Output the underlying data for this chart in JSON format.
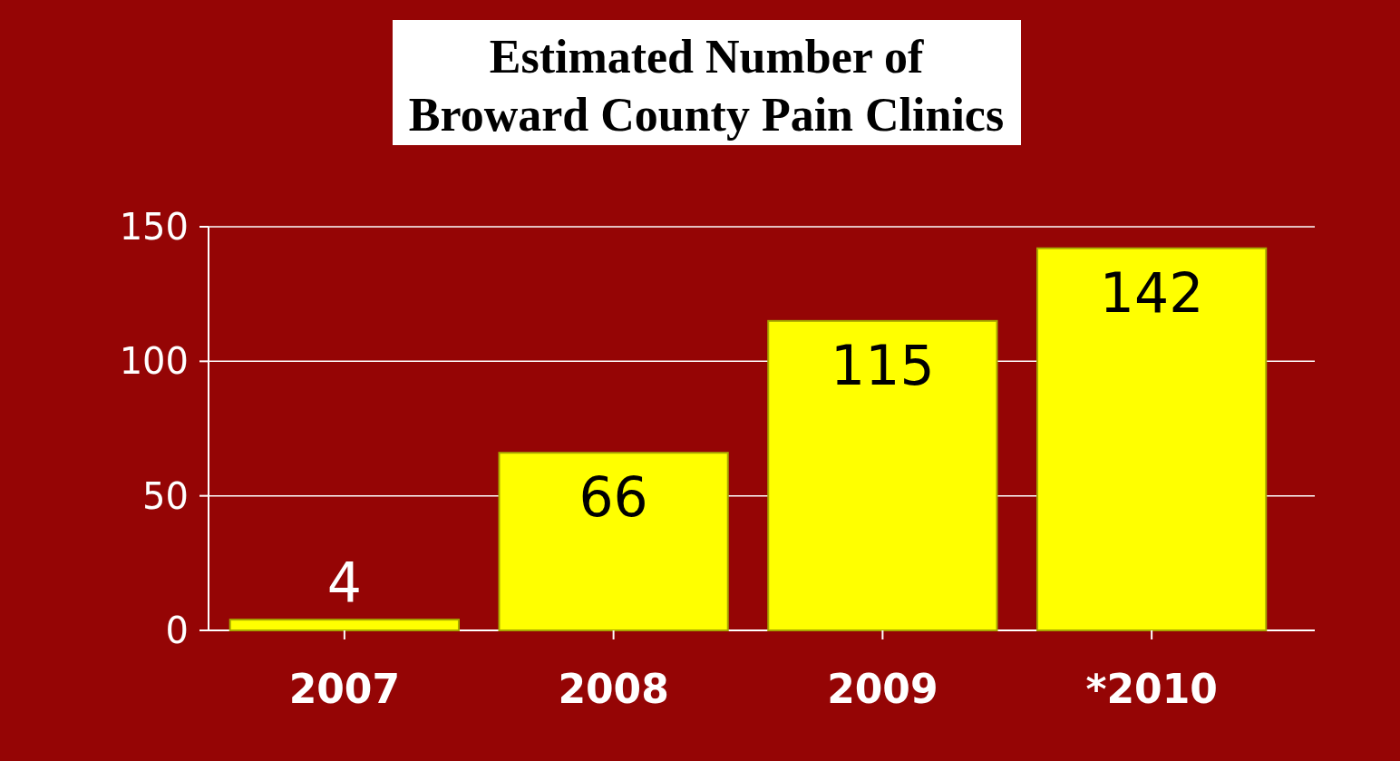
{
  "chart_data": {
    "type": "bar",
    "title": "Estimated Number of\nBroward County Pain Clinics",
    "categories": [
      "2007",
      "2008",
      "2009",
      "*2010"
    ],
    "values": [
      4,
      66,
      115,
      142
    ],
    "color": "#ffff00",
    "ylim": [
      0,
      150
    ],
    "yticks": [
      0,
      50,
      100,
      150
    ],
    "grid": "y",
    "data_labels": true
  }
}
